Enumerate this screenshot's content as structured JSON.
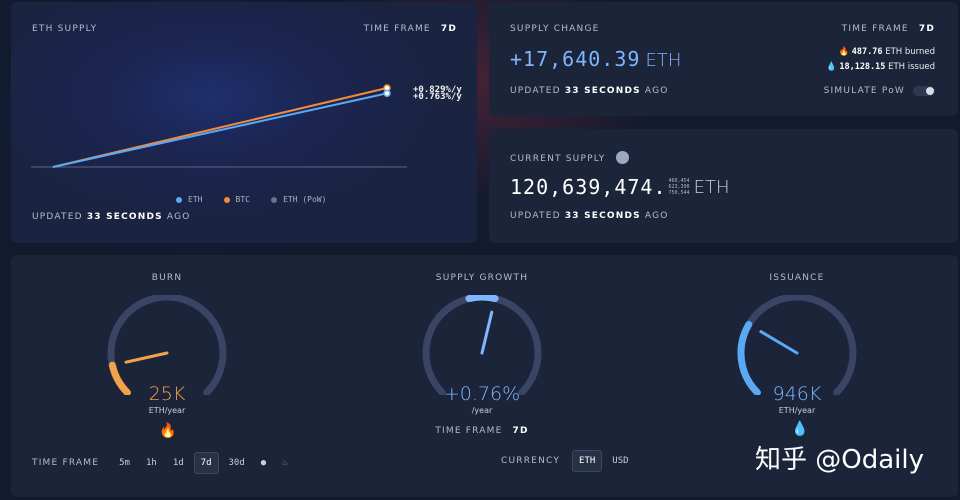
{
  "eth_supply": {
    "title": "ETH SUPPLY",
    "timeframe_label": "TIME FRAME",
    "timeframe_value": "7d",
    "rate_btc": "+0.829%/y",
    "rate_eth": "+0.763%/y",
    "legend": [
      {
        "label": "ETH",
        "color": "#5aa9f5"
      },
      {
        "label": "BTC",
        "color": "#f28b3c"
      },
      {
        "label": "ETH (PoW)",
        "color": "#6b7388"
      }
    ],
    "updated_prefix": "UPDATED",
    "updated_value": "33 SECONDS",
    "updated_suffix": "AGO"
  },
  "chart_data": {
    "type": "line",
    "title": "ETH SUPPLY",
    "xlabel": "",
    "ylabel": "",
    "series": [
      {
        "name": "BTC",
        "color": "#f28b3c",
        "start": 0,
        "end": 0.829,
        "label": "+0.829%/y"
      },
      {
        "name": "ETH",
        "color": "#5aa9f5",
        "start": 0,
        "end": 0.763,
        "label": "+0.763%/y"
      }
    ],
    "ylim": [
      -0.15,
      0.829
    ]
  },
  "supply_change": {
    "title": "SUPPLY CHANGE",
    "timeframe_label": "TIME FRAME",
    "timeframe_value": "7d",
    "value": "+17,640.39",
    "unit": "ETH",
    "burned_value": "487.76",
    "burned_label": "ETH burned",
    "issued_value": "18,128.15",
    "issued_label": "ETH issued",
    "updated_prefix": "UPDATED",
    "updated_value": "33 SECONDS",
    "updated_suffix": "AGO",
    "simulate_label": "SIMULATE PoW"
  },
  "current_supply": {
    "title": "CURRENT SUPPLY",
    "value": "120,639,474.",
    "decimals": [
      "460,454",
      "623,390",
      "750,544"
    ],
    "unit": "ETH",
    "updated_prefix": "UPDATED",
    "updated_value": "33 SECONDS",
    "updated_suffix": "AGO"
  },
  "gauges": {
    "burn": {
      "title": "BURN",
      "value": "25K",
      "sub": "ETH/year",
      "color": "#f2a24a",
      "fraction": 0.12
    },
    "growth": {
      "title": "SUPPLY GROWTH",
      "value": "+0.76%",
      "sub": "/year",
      "color": "#7fb6ff",
      "fraction": 0.55
    },
    "issuance": {
      "title": "ISSUANCE",
      "value": "946K",
      "sub": "ETH/year",
      "color": "#5aa9f5",
      "fraction": 0.28
    },
    "growth_timeframe_label": "TIME FRAME",
    "growth_timeframe_value": "7d"
  },
  "controls": {
    "timeframe_label": "TIME FRAME",
    "timeframes": [
      "5m",
      "1h",
      "1d",
      "7d",
      "30d"
    ],
    "active_timeframe": "7d",
    "currency_label": "CURRENCY",
    "currencies": [
      "ETH",
      "USD"
    ],
    "active_currency": "ETH"
  },
  "watermark": {
    "text": "知乎 @Odaily"
  }
}
